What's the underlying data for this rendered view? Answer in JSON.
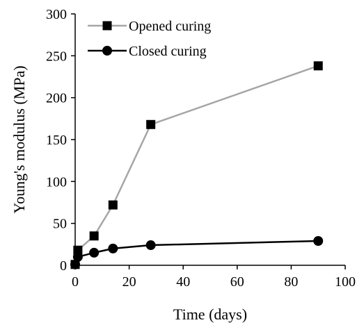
{
  "chart_data": {
    "type": "line",
    "xlabel": "Time (days)",
    "ylabel": "Young's modulus (MPa)",
    "xlim": [
      0,
      100
    ],
    "ylim": [
      0,
      300
    ],
    "x_ticks": [
      0,
      20,
      40,
      60,
      80,
      100
    ],
    "y_ticks": [
      0,
      50,
      100,
      150,
      200,
      250,
      300
    ],
    "grid": false,
    "legend_position": "top-left",
    "series": [
      {
        "name": "Opened curing",
        "marker": "square",
        "line_color": "#a6a6a6",
        "marker_color": "#000000",
        "x": [
          0,
          1,
          7,
          14,
          28,
          90
        ],
        "y": [
          1,
          18,
          35,
          72,
          168,
          238
        ]
      },
      {
        "name": "Closed curing",
        "marker": "circle",
        "line_color": "#000000",
        "marker_color": "#000000",
        "x": [
          0,
          1,
          7,
          14,
          28,
          90
        ],
        "y": [
          1,
          10,
          15,
          20,
          24,
          29
        ]
      }
    ]
  }
}
